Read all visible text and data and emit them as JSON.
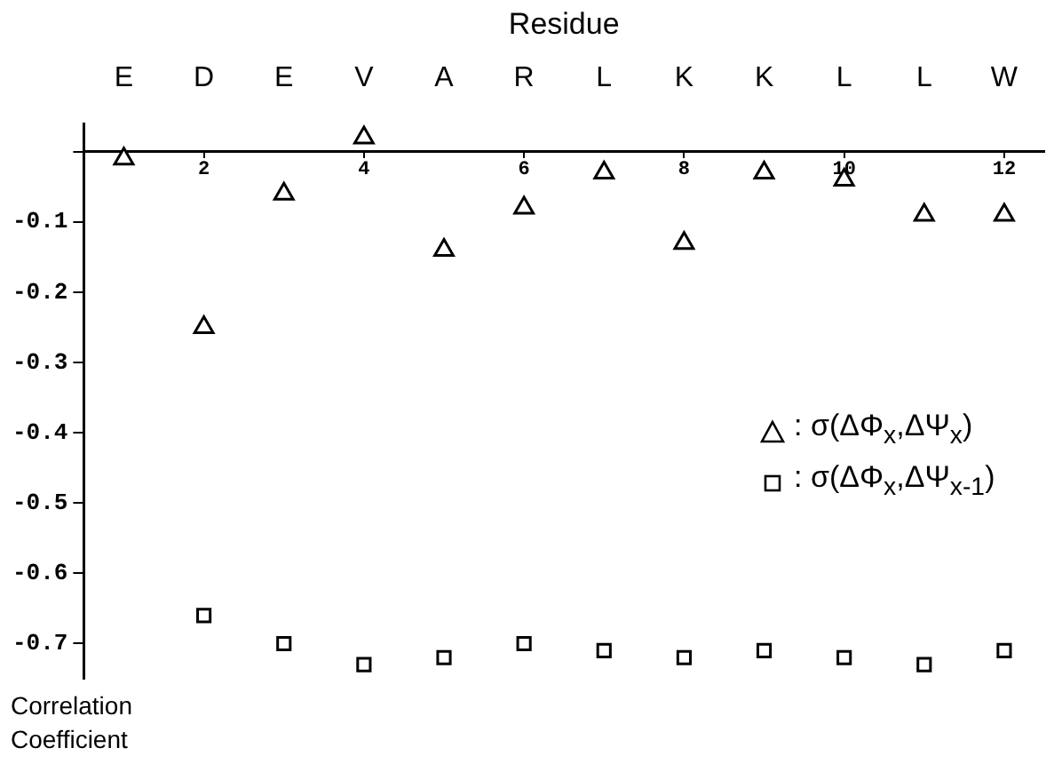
{
  "chart_data": {
    "type": "scatter",
    "xlabel": "Residue",
    "ylabel": "Correlation Coefficient",
    "categories": [
      "E",
      "D",
      "E",
      "V",
      "A",
      "R",
      "L",
      "K",
      "K",
      "L",
      "L",
      "W"
    ],
    "series": [
      {
        "name": ": σ(ΔΦ$_{x}$,ΔΨ$_{x}$)",
        "color": "#000000",
        "marker": "triangle",
        "values": [
          -0.01,
          -0.25,
          -0.06,
          0.02,
          -0.14,
          -0.08,
          -0.03,
          -0.13,
          -0.03,
          -0.04,
          -0.09,
          -0.09
        ]
      },
      {
        "name": ": σ(ΔΦ$_{x}$,ΔΨ$_{x-1}$)",
        "color": "#000000",
        "marker": "square",
        "values": [
          null,
          -0.66,
          -0.7,
          -0.73,
          -0.72,
          -0.7,
          -0.71,
          -0.72,
          -0.71,
          -0.72,
          -0.73,
          -0.71
        ]
      }
    ],
    "x2lim": [
      0.5,
      12.5
    ],
    "x2ticks": [
      2,
      4,
      6,
      8,
      10,
      12
    ],
    "ylim": [
      -0.75,
      0.04
    ],
    "yticks": [
      {
        "value": 0,
        "label": null
      },
      -0.1,
      -0.2,
      -0.3,
      -0.4,
      -0.5,
      -0.6,
      -0.7
    ],
    "grid": false,
    "legend": "right"
  }
}
